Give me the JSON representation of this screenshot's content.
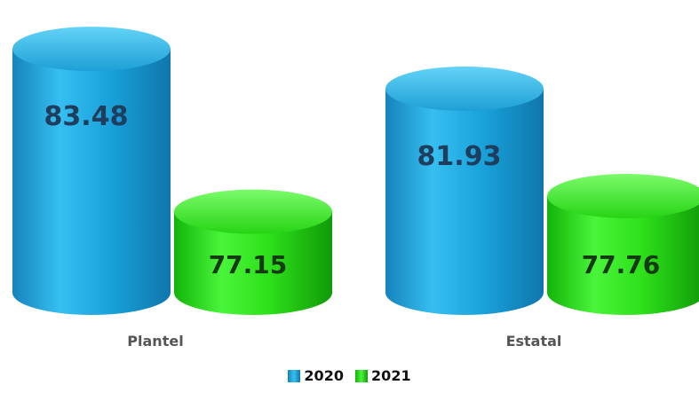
{
  "chart_data": {
    "type": "bar",
    "style": "3d-cylinder",
    "categories": [
      "Plantel",
      "Estatal"
    ],
    "series": [
      {
        "name": "2020",
        "values": [
          83.48,
          81.93
        ],
        "color": "#1aa3dc"
      },
      {
        "name": "2021",
        "values": [
          77.15,
          77.76
        ],
        "color": "#2ee01a"
      }
    ],
    "value_labels": [
      [
        "83.48",
        "81.93"
      ],
      [
        "77.15",
        "77.76"
      ]
    ],
    "ylim": [
      74,
      84
    ],
    "grid": false,
    "legend_position": "bottom-center"
  }
}
